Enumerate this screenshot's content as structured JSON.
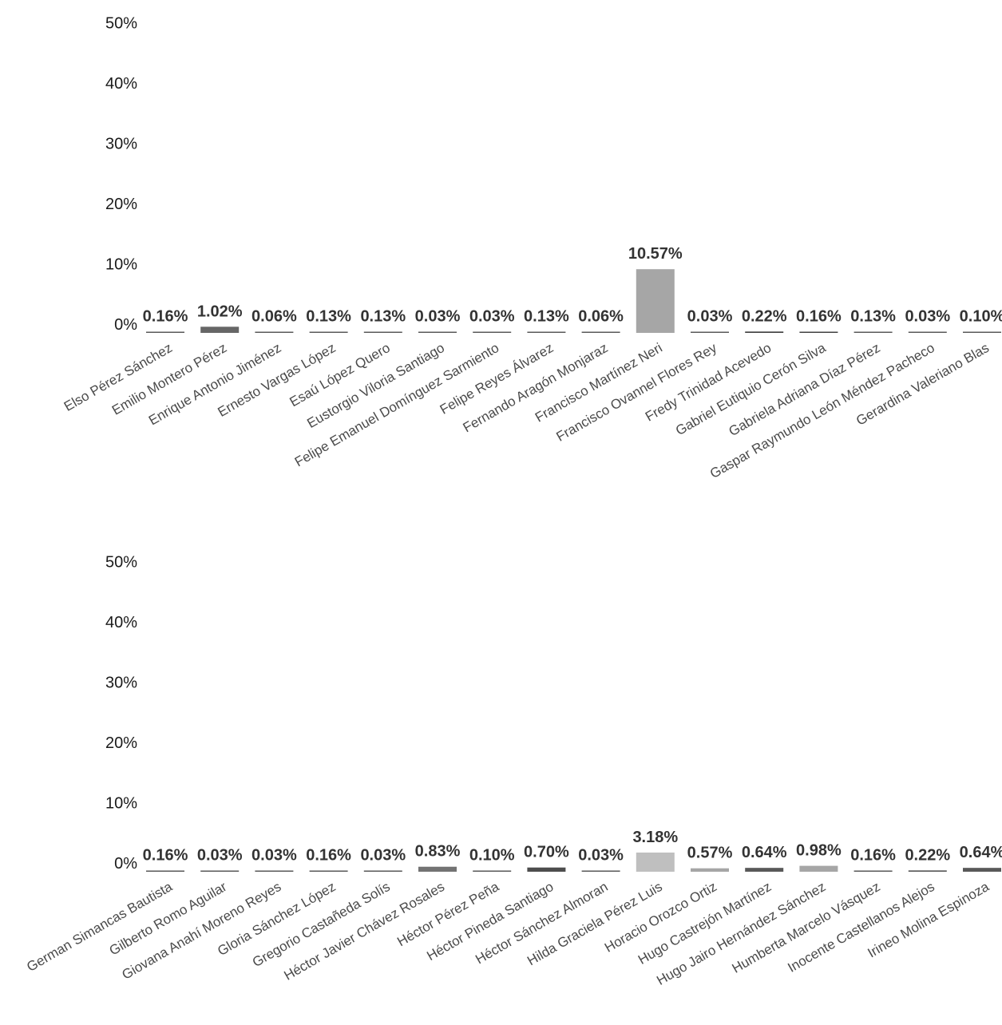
{
  "chart_data": [
    {
      "type": "bar",
      "ylim": [
        0,
        50
      ],
      "yticks": [
        "0%",
        "10%",
        "20%",
        "30%",
        "40%",
        "50%"
      ],
      "categories": [
        "Elso Pérez Sánchez",
        "Emilio Montero Pérez",
        "Enrique Antonio Jiménez",
        "Ernesto Vargas López",
        "Esaú López Quero",
        "Eustorgio Viloria Santiago",
        "Felipe Emanuel Domínguez Sarmiento",
        "Felipe Reyes Álvarez",
        "Fernando Aragón Monjaraz",
        "Francisco Martínez Neri",
        "Francisco Ovannel Flores Rey",
        "Fredy Trinidad Acevedo",
        "Gabriel Eutiquio Cerón Silva",
        "Gabriela Adriana Díaz Pérez",
        "Gaspar Raymundo León Méndez Pacheco",
        "Gerardina Valeriano Blas"
      ],
      "values": [
        0.16,
        1.02,
        0.06,
        0.13,
        0.13,
        0.03,
        0.03,
        0.13,
        0.06,
        10.57,
        0.03,
        0.22,
        0.16,
        0.13,
        0.03,
        0.1
      ],
      "labels": [
        "0.16%",
        "1.02%",
        "0.06%",
        "0.13%",
        "0.13%",
        "0.03%",
        "0.03%",
        "0.13%",
        "0.06%",
        "10.57%",
        "0.03%",
        "0.22%",
        "0.16%",
        "0.13%",
        "0.03%",
        "0.10%"
      ],
      "colors": [
        "#595959",
        "#666666",
        "#595959",
        "#595959",
        "#595959",
        "#595959",
        "#595959",
        "#595959",
        "#595959",
        "#a6a6a6",
        "#595959",
        "#404040",
        "#404040",
        "#595959",
        "#595959",
        "#595959"
      ]
    },
    {
      "type": "bar",
      "ylim": [
        0,
        50
      ],
      "yticks": [
        "0%",
        "10%",
        "20%",
        "30%",
        "40%",
        "50%"
      ],
      "categories": [
        "German Simancas Bautista",
        "Gilberto Romo Aguilar",
        "Giovana Anahí Moreno Reyes",
        "Gloria Sánchez López",
        "Gregorio Castañeda Solís",
        "Héctor Javier Chávez Rosales",
        "Héctor Pérez Peña",
        "Héctor Pineda Santiago",
        "Héctor Sánchez Almoran",
        "Hilda Graciela Pérez Luis",
        "Horacio Orozco Ortiz",
        "Hugo Castrejón Martínez",
        "Hugo Jairo Hernández Sánchez",
        "Humberta Marcelo Vásquez",
        "Inocente Castellanos Alejos",
        "Irineo Molina Espinoza"
      ],
      "values": [
        0.16,
        0.03,
        0.03,
        0.16,
        0.03,
        0.83,
        0.1,
        0.7,
        0.03,
        3.18,
        0.57,
        0.64,
        0.98,
        0.16,
        0.22,
        0.64
      ],
      "labels": [
        "0.16%",
        "0.03%",
        "0.03%",
        "0.16%",
        "0.03%",
        "0.83%",
        "0.10%",
        "0.70%",
        "0.03%",
        "3.18%",
        "0.57%",
        "0.64%",
        "0.98%",
        "0.16%",
        "0.22%",
        "0.64%"
      ],
      "colors": [
        "#595959",
        "#595959",
        "#595959",
        "#595959",
        "#595959",
        "#737373",
        "#595959",
        "#4d4d4d",
        "#595959",
        "#bfbfbf",
        "#a6a6a6",
        "#595959",
        "#a6a6a6",
        "#595959",
        "#595959",
        "#595959"
      ]
    }
  ]
}
